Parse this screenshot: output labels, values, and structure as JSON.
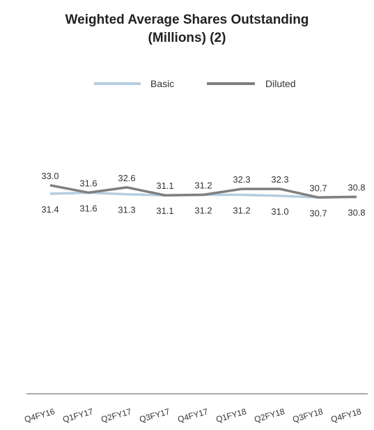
{
  "title_line1": "Weighted Average Shares Outstanding",
  "title_line2": "(Millions) (2)",
  "chart_data": {
    "type": "line",
    "categories": [
      "Q4FY16",
      "Q1FY17",
      "Q2FY17",
      "Q3FY17",
      "Q4FY17",
      "Q1FY18",
      "Q2FY18",
      "Q3FY18",
      "Q4FY18"
    ],
    "series": [
      {
        "name": "Basic",
        "values": [
          31.4,
          31.6,
          31.3,
          31.1,
          31.2,
          31.2,
          31.0,
          30.7,
          30.8
        ],
        "labels": [
          "31.4",
          "31.6",
          "31.3",
          "31.1",
          "31.2",
          "31.2",
          "31.0",
          "30.7",
          "30.8"
        ],
        "color": "#b4cde0"
      },
      {
        "name": "Diluted",
        "values": [
          33.0,
          31.6,
          32.6,
          31.1,
          31.2,
          32.3,
          32.3,
          30.7,
          30.8
        ],
        "labels": [
          "33.0",
          "31.6",
          "32.6",
          "31.1",
          "31.2",
          "32.3",
          "32.3",
          "30.7",
          "30.8"
        ],
        "color": "#7f7f7f"
      }
    ],
    "legend_position": "top-center",
    "grid": false,
    "tick_label_rotation": "slanted"
  }
}
